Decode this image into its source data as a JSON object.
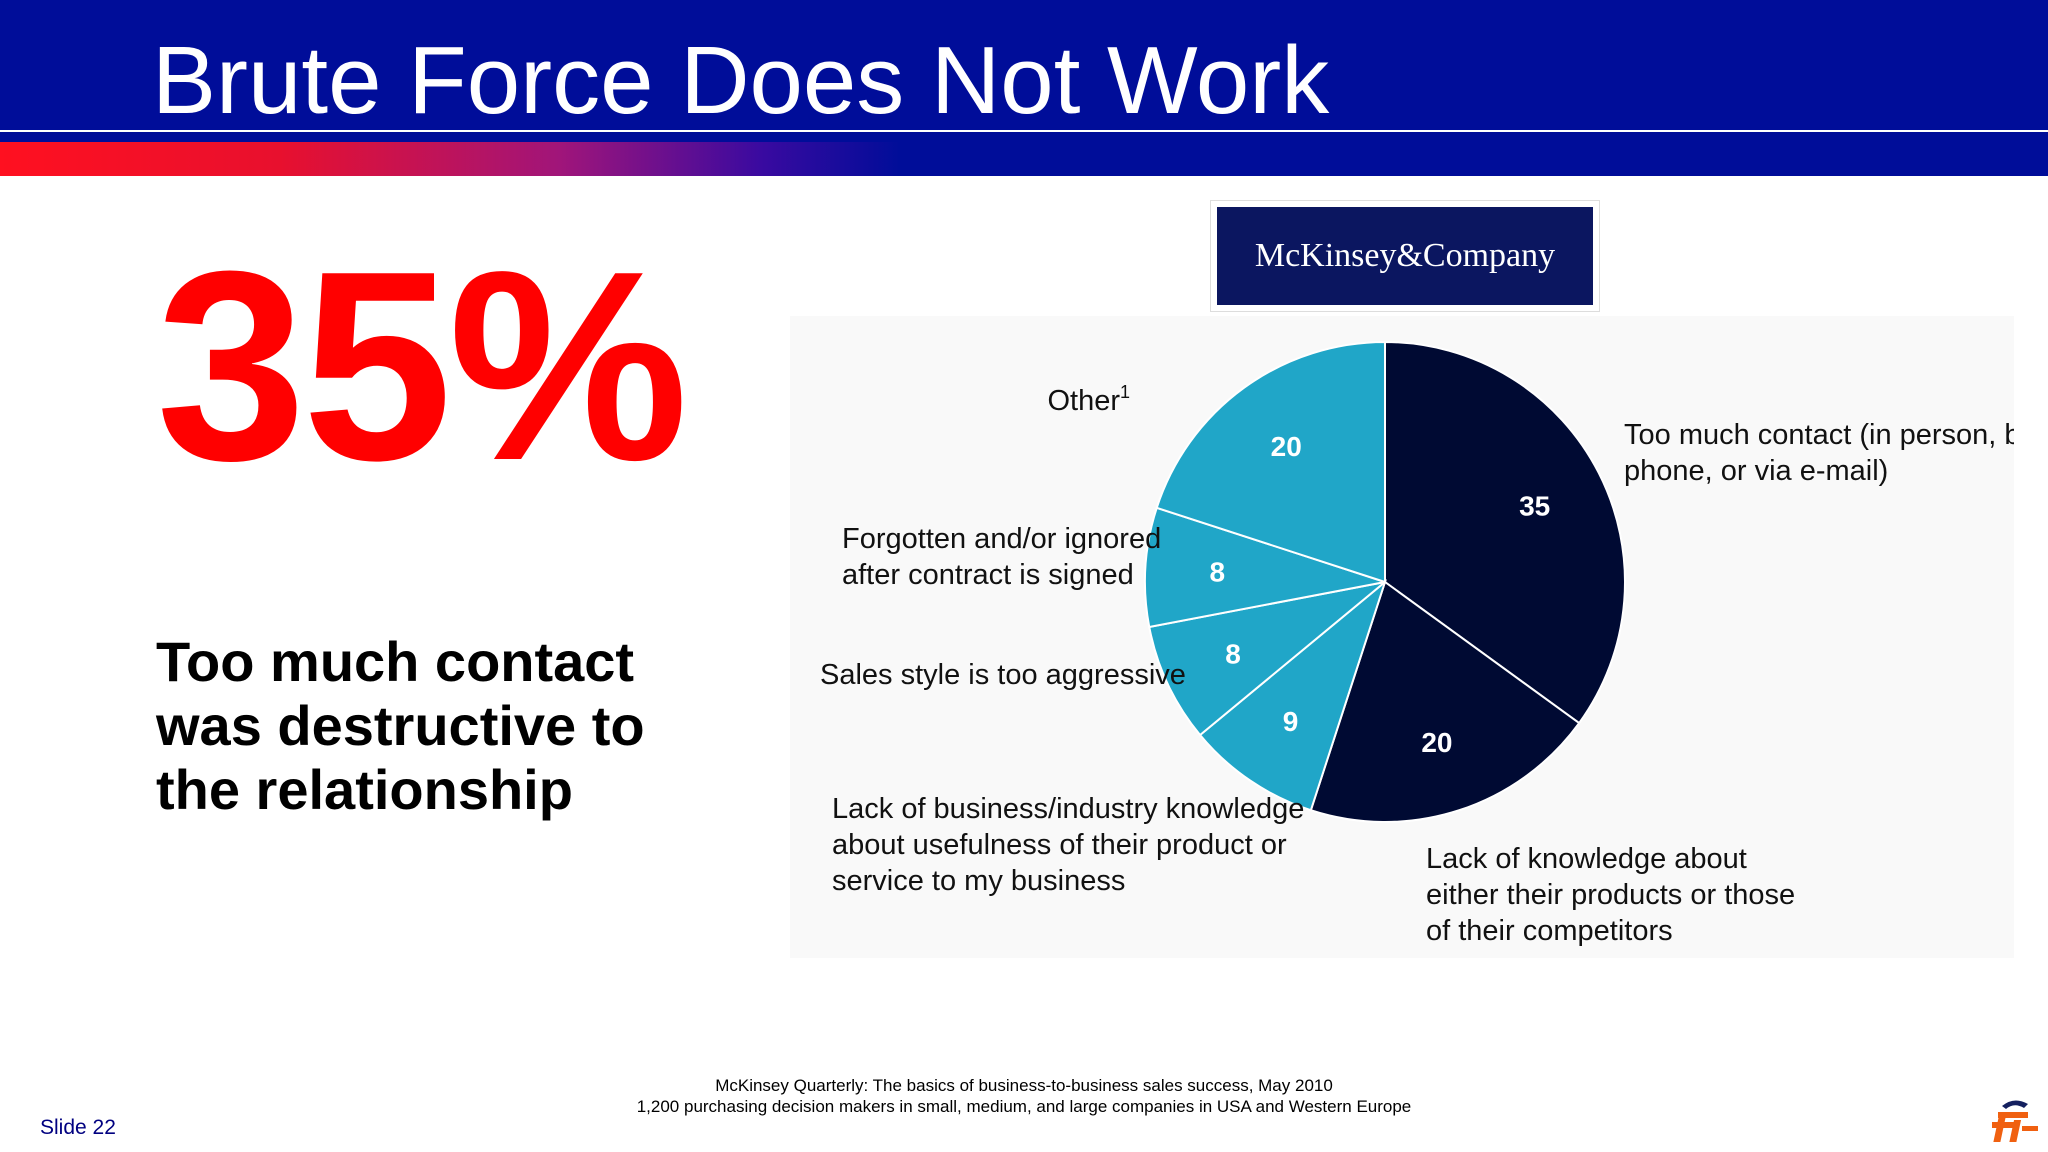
{
  "slide": {
    "title": "Brute Force Does Not Work",
    "big_stat": "35%",
    "caption": "Too much contact was destructive to the relationship",
    "logo_text": "McKinsey&Company",
    "source_line1": "McKinsey Quarterly: The basics of business-to-business sales success, May 2010",
    "source_line2": "1,200 purchasing decision makers in small, medium, and large companies in USA and Western Europe",
    "slide_number": "Slide 22"
  },
  "colors": {
    "header_blue": "#000d99",
    "stat_red": "#ff0000",
    "slice_dark": "#000a33",
    "slice_light": "#20a6c8"
  },
  "chart_data": {
    "type": "pie",
    "title": "",
    "slices": [
      {
        "label": "Too much contact (in person, by phone, or via e-mail)",
        "value": 35,
        "color": "#000a33"
      },
      {
        "label": "Lack of knowledge about either their products or those of their competitors",
        "value": 20,
        "color": "#000a33"
      },
      {
        "label": "Lack of business/industry knowledge about usefulness of their product or service to my business",
        "value": 9,
        "color": "#20a6c8"
      },
      {
        "label": "Sales style is too aggressive",
        "value": 8,
        "color": "#20a6c8"
      },
      {
        "label": "Forgotten and/or ignored after contract is signed",
        "value": 8,
        "color": "#20a6c8"
      },
      {
        "label": "Other",
        "label_sup": "1",
        "value": 20,
        "color": "#20a6c8"
      }
    ]
  }
}
